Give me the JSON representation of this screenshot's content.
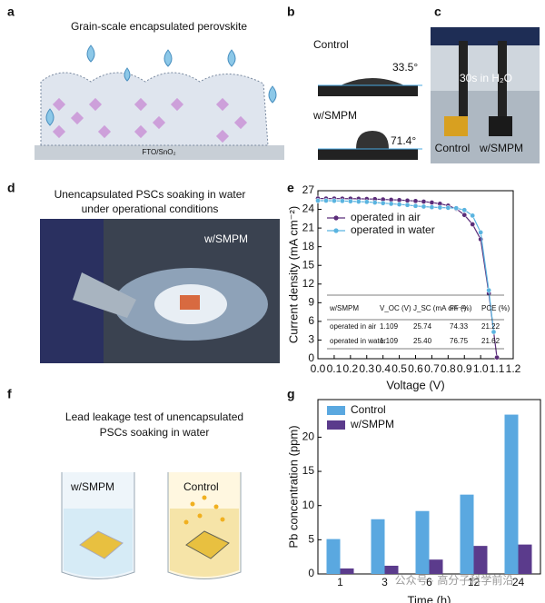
{
  "panels": {
    "a": {
      "label": "a",
      "title": "Grain-scale encapsulated perovskite",
      "substrate": "FTO/SnO₂"
    },
    "b": {
      "label": "b",
      "control": "Control",
      "control_angle": "33.5°",
      "smpm": "w/SMPM",
      "smpm_angle": "71.4°"
    },
    "c": {
      "label": "c",
      "caption": "30s in H₂O",
      "left": "Control",
      "right": "w/SMPM"
    },
    "d": {
      "label": "d",
      "title": [
        "Unencapsulated PSCs soaking in water",
        "under operational conditions"
      ],
      "tag": "w/SMPM"
    },
    "e": {
      "label": "e"
    },
    "f": {
      "label": "f",
      "title": [
        "Lead leakage test of unencapsulated",
        "PSCs soaking in water"
      ],
      "left": "w/SMPM",
      "right": "Control"
    },
    "g": {
      "label": "g"
    },
    "watermark": "公众号 · 高分子科学前沿"
  },
  "chart_data": [
    {
      "type": "line",
      "xlabel": "Voltage (V)",
      "ylabel": "Current density (mA cm⁻²)",
      "xlim": [
        0,
        1.2
      ],
      "ylim": [
        0,
        27
      ],
      "xticks": [
        {
          "value": 0,
          "label": "0.0"
        },
        0.1,
        0.2,
        0.3,
        0.4,
        0.5,
        0.6,
        0.7,
        0.8,
        0.9,
        {
          "value": 1,
          "label": "1.0"
        },
        1.1,
        1.2
      ],
      "yticks": [
        0,
        3,
        6,
        9,
        12,
        15,
        18,
        21,
        24,
        27
      ],
      "legend": "upper left",
      "series": [
        {
          "name": "operated in air",
          "color": "#5b2d7a",
          "x": [
            0,
            0.05,
            0.1,
            0.15,
            0.2,
            0.25,
            0.3,
            0.35,
            0.4,
            0.45,
            0.5,
            0.55,
            0.6,
            0.65,
            0.7,
            0.75,
            0.8,
            0.85,
            0.9,
            0.95,
            1,
            1.05,
            1.1
          ],
          "values": [
            25.75,
            25.74,
            25.74,
            25.73,
            25.72,
            25.7,
            25.68,
            25.65,
            25.6,
            25.55,
            25.5,
            25.42,
            25.35,
            25.25,
            25.1,
            24.9,
            24.6,
            24.1,
            23.1,
            21.6,
            19.2,
            10.5,
            0.2
          ]
        },
        {
          "name": "operated in water",
          "color": "#5ab4e0",
          "x": [
            0,
            0.05,
            0.1,
            0.15,
            0.2,
            0.25,
            0.3,
            0.35,
            0.4,
            0.45,
            0.5,
            0.55,
            0.6,
            0.65,
            0.7,
            0.75,
            0.8,
            0.85,
            0.9,
            0.95,
            1,
            1.05,
            1.08
          ],
          "values": [
            25.4,
            25.4,
            25.38,
            25.35,
            25.3,
            25.25,
            25.2,
            25.1,
            25.0,
            24.9,
            24.8,
            24.7,
            24.55,
            24.45,
            24.35,
            24.3,
            24.25,
            24.2,
            23.9,
            23.0,
            20.3,
            11.0,
            4.3
          ]
        }
      ],
      "table": {
        "header": [
          "w/SMPM",
          "V_OC (V)",
          "J_SC (mA cm⁻²)",
          "FF (%)",
          "PCE (%)"
        ],
        "rows": [
          [
            "operated in air",
            "1.109",
            "25.74",
            "74.33",
            "21.22"
          ],
          [
            "operated in water",
            "1.109",
            "25.40",
            "76.75",
            "21.62"
          ]
        ]
      }
    },
    {
      "type": "bar",
      "xlabel": "Time (h)",
      "ylabel": "Pb concentration (ppm)",
      "categories": [
        "1",
        "3",
        "6",
        "12",
        "24"
      ],
      "ylim": [
        0,
        25.5
      ],
      "yticks": [
        0,
        5,
        10,
        15,
        20
      ],
      "legend": "upper left",
      "series": [
        {
          "name": "Control",
          "color": "#5aa8e0",
          "values": [
            5.1,
            8.0,
            9.2,
            11.6,
            23.3
          ]
        },
        {
          "name": "w/SMPM",
          "color": "#5b3b8c",
          "values": [
            0.8,
            1.2,
            2.1,
            4.1,
            4.3
          ]
        }
      ]
    }
  ]
}
